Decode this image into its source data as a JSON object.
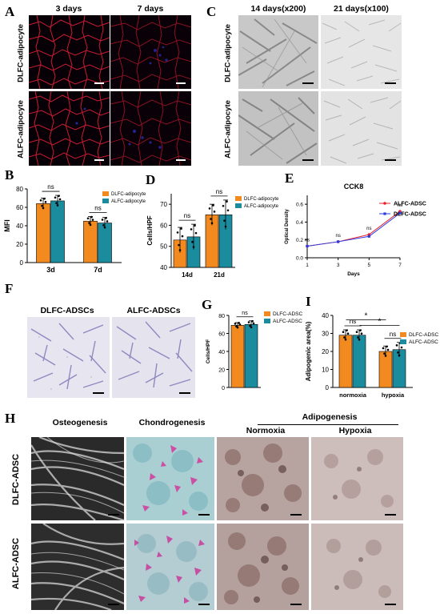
{
  "panels": {
    "A": {
      "label": "A",
      "columns": [
        "3 days",
        "7 days"
      ],
      "rows": [
        "DLFC-adipocyte",
        "ALFC-adipocyte"
      ]
    },
    "C": {
      "label": "C",
      "columns": [
        "14 days(x200)",
        "21 days(x100)"
      ],
      "rows": [
        "DLFC-adipocyte",
        "ALFC-adipocyte"
      ]
    },
    "F": {
      "label": "F",
      "columns": [
        "DLFC-ADSCs",
        "ALFC-ADSCs"
      ]
    },
    "H": {
      "label": "H",
      "columns": [
        "Osteogenesis",
        "Chondrogenesis"
      ],
      "group_label": "Adipogenesis",
      "group_columns": [
        "Normoxia",
        "Hypoxia"
      ],
      "rows": [
        "DLFC-ADSC",
        "ALFC-ADSC"
      ]
    }
  },
  "colors": {
    "orange": "#f28a1f",
    "teal": "#1b8b9e",
    "red_line": "#e8232b",
    "blue_line": "#2b3ae0"
  },
  "chart_data": [
    {
      "id": "B",
      "label": "B",
      "type": "bar",
      "ylabel": "MFI",
      "ylim": [
        0,
        80
      ],
      "yticks": [
        0,
        20,
        40,
        60,
        80
      ],
      "categories": [
        "3d",
        "7d"
      ],
      "series": [
        {
          "name": "DLFC-adipocyte",
          "values": [
            64,
            45
          ],
          "err": [
            6,
            5
          ]
        },
        {
          "name": "ALFC-adipocyte",
          "values": [
            67,
            43
          ],
          "err": [
            6,
            6
          ]
        }
      ],
      "sig": [
        "ns",
        "ns"
      ],
      "legend": "top-right"
    },
    {
      "id": "D",
      "label": "D",
      "type": "bar",
      "ylabel": "Cells/HPF",
      "ylim": [
        40,
        75
      ],
      "yticks": [
        40,
        50,
        60,
        70
      ],
      "categories": [
        "14d",
        "21d"
      ],
      "series": [
        {
          "name": "DLFC-adipocyte",
          "values": [
            53,
            65
          ],
          "err": [
            6,
            5
          ]
        },
        {
          "name": "ALFC-adipocyte",
          "values": [
            54.5,
            65
          ],
          "err": [
            6,
            7
          ]
        }
      ],
      "sig": [
        "ns",
        "ns"
      ],
      "legend": "top-right"
    },
    {
      "id": "E",
      "label": "E",
      "type": "line",
      "title": "CCK8",
      "xlabel": "Days",
      "ylabel": "Optical Density",
      "x": [
        1,
        3,
        5,
        7
      ],
      "xticks": [
        1,
        3,
        5,
        7
      ],
      "ylim": [
        0,
        0.7
      ],
      "yticks": [
        0.0,
        0.2,
        0.4,
        0.6
      ],
      "series": [
        {
          "name": "ALFC-ADSC",
          "values": [
            0.13,
            0.18,
            0.26,
            0.52
          ]
        },
        {
          "name": "DLFC-ADSC",
          "values": [
            0.13,
            0.18,
            0.24,
            0.5
          ]
        }
      ],
      "sig": [
        "ns",
        "ns",
        "ns",
        "ns"
      ],
      "legend": "top-right"
    },
    {
      "id": "G",
      "label": "G",
      "type": "bar",
      "ylabel": "Cells/HPF",
      "ylim": [
        0,
        80
      ],
      "yticks": [
        0,
        20,
        40,
        60,
        80
      ],
      "categories": [
        ""
      ],
      "series": [
        {
          "name": "DLFC-ADSC",
          "values": [
            69
          ],
          "err": [
            3
          ]
        },
        {
          "name": "ALFC-ADSC",
          "values": [
            70
          ],
          "err": [
            4
          ]
        }
      ],
      "sig": [
        "ns"
      ],
      "legend": "top-right"
    },
    {
      "id": "I",
      "label": "I",
      "type": "bar",
      "ylabel": "Adipogenic area(%)",
      "ylim": [
        0,
        40
      ],
      "yticks": [
        0,
        10,
        20,
        30,
        40
      ],
      "categories": [
        "normoxia",
        "hypoxia"
      ],
      "series": [
        {
          "name": "DLFC-ADSC",
          "values": [
            29,
            20
          ],
          "err": [
            3,
            3
          ]
        },
        {
          "name": "ALFC-ADSC",
          "values": [
            29,
            21
          ],
          "err": [
            3,
            4
          ]
        }
      ],
      "sig": [
        "ns",
        "ns"
      ],
      "between_sig": [
        "*",
        "*"
      ],
      "legend": "right"
    }
  ]
}
